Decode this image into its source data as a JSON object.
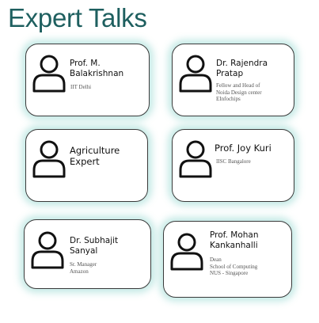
{
  "page": {
    "title": "Expert Talks"
  },
  "speakers": [
    {
      "name_lines": [
        "Prof. M.",
        "Balakrishnan"
      ],
      "desc_lines": [
        "IIT Delhi"
      ],
      "icon": "user-icon"
    },
    {
      "name_lines": [
        "Dr. Rajendra",
        "Pratap"
      ],
      "desc_lines": [
        "Fellow and Head of",
        "Noida Design center",
        "EInfochips"
      ],
      "icon": "user-icon"
    },
    {
      "name_lines": [
        "Agriculture",
        "Expert"
      ],
      "desc_lines": [],
      "icon": "user-icon"
    },
    {
      "name_lines": [
        "Prof. Joy Kuri"
      ],
      "desc_lines": [
        "IISC Bangalore"
      ],
      "icon": "user-icon"
    },
    {
      "name_lines": [
        "Dr. Subhajit",
        "Sanyal"
      ],
      "desc_lines": [
        "Sr. Manager",
        "Amazon"
      ],
      "icon": "user-icon"
    },
    {
      "name_lines": [
        "Prof. Mohan",
        "Kankanhalli"
      ],
      "desc_lines": [
        "Dean",
        "School of Computing",
        "NUS - Singapore"
      ],
      "icon": "user-icon"
    }
  ],
  "colors": {
    "title": "#1e5f5f",
    "card_glow": "#78cdc3",
    "card_border": "#3a3a3a"
  }
}
